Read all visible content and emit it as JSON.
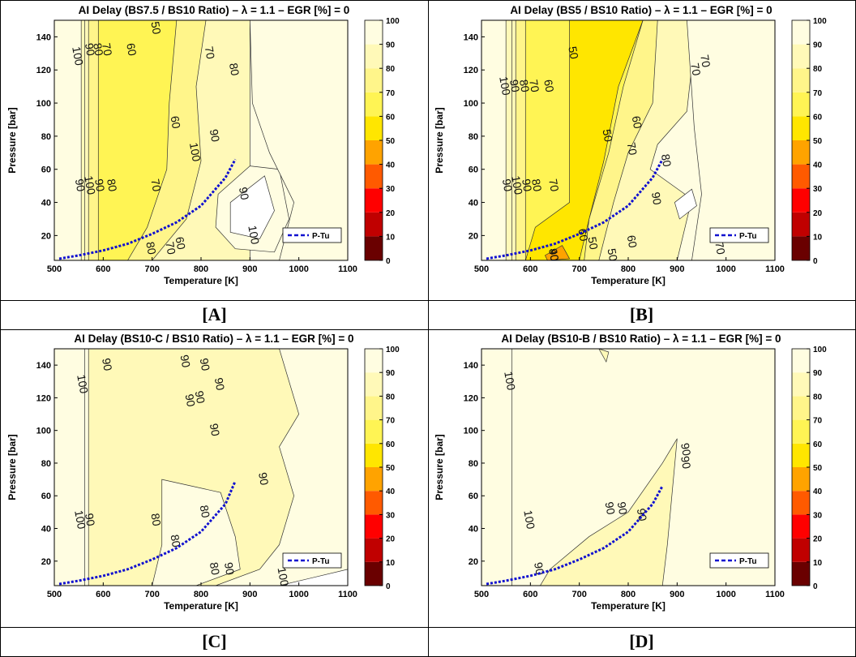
{
  "panels": [
    {
      "id": "A",
      "caption": "[A]",
      "title": "AI Delay (BS7.5 / BS10 Ratio) – λ = 1.1 – EGR [%] = 0",
      "contour_labels": [
        "100",
        "90",
        "80",
        "70",
        "60",
        "50",
        "70",
        "80",
        "90",
        "100",
        "90",
        "80",
        "70",
        "60",
        "100",
        "90",
        "80",
        "70",
        "60",
        "90",
        "100"
      ]
    },
    {
      "id": "B",
      "caption": "[B]",
      "title": "AI Delay (BS5 / BS10 Ratio) – λ = 1.1 – EGR [%] = 0",
      "contour_labels": [
        "100",
        "90",
        "80",
        "70",
        "60",
        "50",
        "70",
        "70",
        "50",
        "60",
        "70",
        "80",
        "90",
        "90",
        "100",
        "90",
        "80",
        "70",
        "60",
        "50",
        "50",
        "60",
        "70",
        "90",
        "40"
      ]
    },
    {
      "id": "C",
      "caption": "[C]",
      "title": "AI Delay (BS10-C / BS10 Ratio) – λ = 1.1 – EGR [%] = 0",
      "contour_labels": [
        "100",
        "90",
        "90",
        "90",
        "90",
        "90",
        "90",
        "90",
        "90",
        "100",
        "90",
        "80",
        "80",
        "80",
        "80",
        "90",
        "100"
      ]
    },
    {
      "id": "D",
      "caption": "[D]",
      "title": "AI Delay (BS10-B / BS10 Ratio) – λ = 1.1 – EGR [%] = 0",
      "contour_labels": [
        "100",
        "90",
        "90",
        "100",
        "90",
        "90",
        "90",
        "90"
      ]
    }
  ],
  "chart_data": [
    {
      "type": "heatmap",
      "title": "AI Delay (BS7.5 / BS10 Ratio) – λ = 1.1 – EGR [%] = 0",
      "xlabel": "Temperature [K]",
      "ylabel": "Pressure [bar]",
      "xlim": [
        500,
        1100
      ],
      "ylim": [
        5,
        150
      ],
      "xticks": [
        500,
        600,
        700,
        800,
        900,
        1000,
        1100
      ],
      "yticks": [
        20,
        40,
        60,
        80,
        100,
        120,
        140
      ],
      "colorbar": {
        "range": [
          0,
          100
        ],
        "ticks": [
          0,
          10,
          20,
          30,
          40,
          50,
          60,
          70,
          80,
          90,
          100
        ]
      },
      "legend": {
        "entries": [
          "P-Tu"
        ],
        "placement": "bottom-right"
      },
      "series": [
        {
          "name": "P-Tu",
          "x": [
            510,
            550,
            600,
            650,
            700,
            750,
            800,
            850,
            870
          ],
          "y": [
            6,
            8,
            11,
            15,
            21,
            28,
            38,
            55,
            66
          ]
        }
      ]
    },
    {
      "type": "heatmap",
      "title": "AI Delay (BS5 / BS10 Ratio) – λ = 1.1 – EGR [%] = 0",
      "xlabel": "Temperature [K]",
      "ylabel": "Pressure [bar]",
      "xlim": [
        500,
        1100
      ],
      "ylim": [
        5,
        150
      ],
      "xticks": [
        500,
        600,
        700,
        800,
        900,
        1000,
        1100
      ],
      "yticks": [
        20,
        40,
        60,
        80,
        100,
        120,
        140
      ],
      "colorbar": {
        "range": [
          0,
          100
        ],
        "ticks": [
          0,
          10,
          20,
          30,
          40,
          50,
          60,
          70,
          80,
          90,
          100
        ]
      },
      "legend": {
        "entries": [
          "P-Tu"
        ],
        "placement": "bottom-right"
      },
      "series": [
        {
          "name": "P-Tu",
          "x": [
            510,
            550,
            600,
            650,
            700,
            750,
            800,
            850,
            870
          ],
          "y": [
            6,
            8,
            11,
            15,
            21,
            28,
            38,
            55,
            66
          ]
        }
      ]
    },
    {
      "type": "heatmap",
      "title": "AI Delay (BS10-C / BS10 Ratio) – λ = 1.1 – EGR [%] = 0",
      "xlabel": "Temperature [K]",
      "ylabel": "Pressure [bar]",
      "xlim": [
        500,
        1100
      ],
      "ylim": [
        5,
        150
      ],
      "xticks": [
        500,
        600,
        700,
        800,
        900,
        1000,
        1100
      ],
      "yticks": [
        20,
        40,
        60,
        80,
        100,
        120,
        140
      ],
      "colorbar": {
        "range": [
          0,
          100
        ],
        "ticks": [
          0,
          10,
          20,
          30,
          40,
          50,
          60,
          70,
          80,
          90,
          100
        ]
      },
      "legend": {
        "entries": [
          "P-Tu"
        ],
        "placement": "bottom-right"
      },
      "series": [
        {
          "name": "P-Tu",
          "x": [
            510,
            550,
            600,
            650,
            700,
            750,
            800,
            850,
            870
          ],
          "y": [
            6,
            8,
            11,
            15,
            21,
            28,
            38,
            55,
            69
          ]
        }
      ]
    },
    {
      "type": "heatmap",
      "title": "AI Delay (BS10-B / BS10 Ratio) – λ = 1.1 – EGR [%] = 0",
      "xlabel": "Temperature [K]",
      "ylabel": "Pressure [bar]",
      "xlim": [
        500,
        1100
      ],
      "ylim": [
        5,
        150
      ],
      "xticks": [
        500,
        600,
        700,
        800,
        900,
        1000,
        1100
      ],
      "yticks": [
        20,
        40,
        60,
        80,
        100,
        120,
        140
      ],
      "colorbar": {
        "range": [
          0,
          100
        ],
        "ticks": [
          0,
          10,
          20,
          30,
          40,
          50,
          60,
          70,
          80,
          90,
          100
        ]
      },
      "legend": {
        "entries": [
          "P-Tu"
        ],
        "placement": "bottom-right"
      },
      "series": [
        {
          "name": "P-Tu",
          "x": [
            510,
            550,
            600,
            650,
            700,
            750,
            800,
            850,
            870
          ],
          "y": [
            6,
            8,
            11,
            15,
            21,
            28,
            38,
            55,
            66
          ]
        }
      ]
    }
  ],
  "colors": {
    "band_90_100": "#FFFDE1",
    "band_80_90": "#FFF9B8",
    "band_70_80": "#FFF58A",
    "band_60_70": "#FFF454",
    "band_50_60": "#FFE600",
    "band_40_50": "#FFA300",
    "band_30_40": "#FF5A00",
    "band_20_30": "#FF0000",
    "band_10_20": "#C00000",
    "band_0_10": "#6A0000",
    "ptu_line": "#1010D0",
    "contour_line": "#333333"
  }
}
